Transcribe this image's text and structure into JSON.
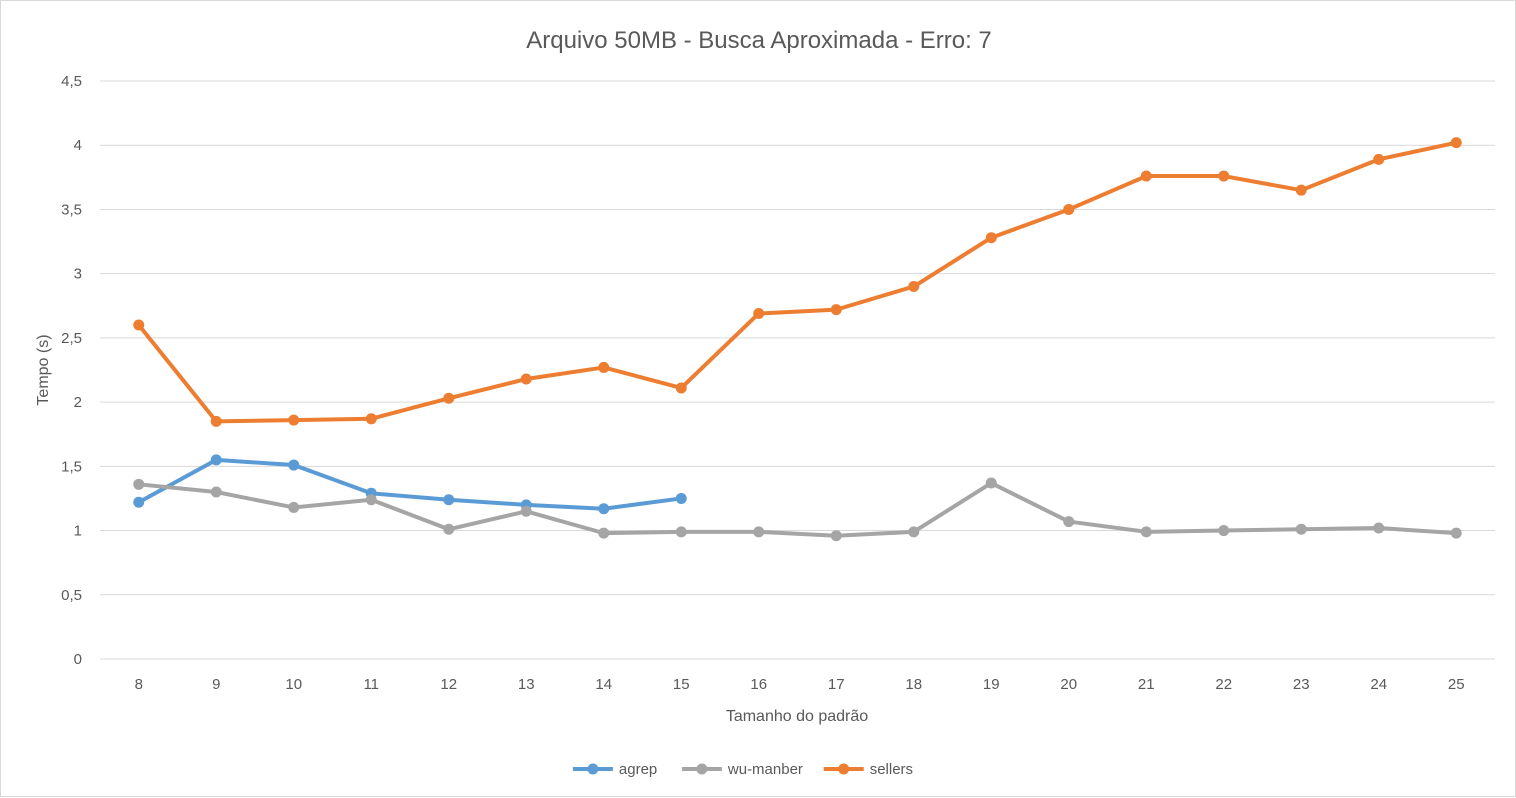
{
  "chart_data": {
    "type": "line",
    "title": "Arquivo 50MB - Busca Aproximada - Erro: 7",
    "xlabel": "Tamanho do padrão",
    "ylabel": "Tempo (s)",
    "categories": [
      "8",
      "9",
      "10",
      "11",
      "12",
      "13",
      "14",
      "15",
      "16",
      "17",
      "18",
      "19",
      "20",
      "21",
      "22",
      "23",
      "24",
      "25"
    ],
    "yticks": [
      "0",
      "0,5",
      "1",
      "1,5",
      "2",
      "2,5",
      "3",
      "3,5",
      "4",
      "4,5"
    ],
    "ylim": [
      0,
      4.5
    ],
    "grid": true,
    "legend_position": "bottom",
    "series": [
      {
        "name": "agrep",
        "color": "#5b9bd5",
        "values": [
          1.22,
          1.55,
          1.51,
          1.29,
          1.24,
          1.2,
          1.17,
          1.25,
          null,
          null,
          null,
          null,
          null,
          null,
          null,
          null,
          null,
          null
        ]
      },
      {
        "name": "wu-manber",
        "color": "#a5a5a5",
        "values": [
          1.36,
          1.3,
          1.18,
          1.24,
          1.01,
          1.15,
          0.98,
          0.99,
          0.99,
          0.96,
          0.99,
          1.37,
          1.07,
          0.99,
          1.0,
          1.01,
          1.02,
          0.98
        ]
      },
      {
        "name": "sellers",
        "color": "#ed7d31",
        "values": [
          2.6,
          1.85,
          1.86,
          1.87,
          2.03,
          2.18,
          2.27,
          2.11,
          2.69,
          2.72,
          2.9,
          3.28,
          3.5,
          3.76,
          3.76,
          3.65,
          3.89,
          4.02
        ]
      }
    ]
  }
}
